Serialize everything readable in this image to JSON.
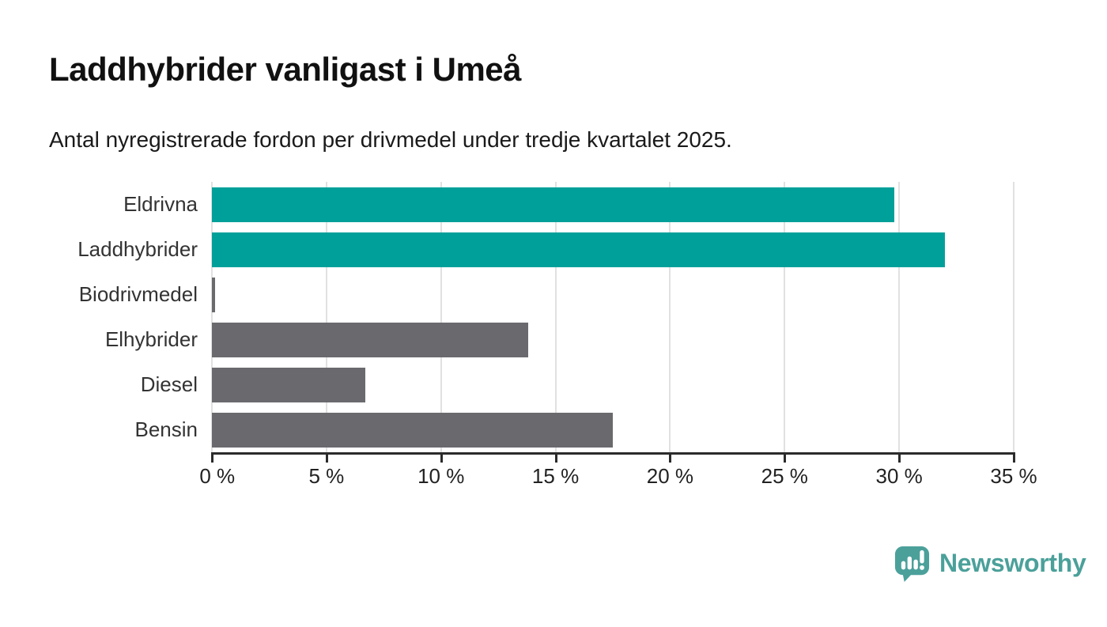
{
  "chart_data": {
    "type": "bar",
    "orientation": "horizontal",
    "title": "Laddhybrider vanligast i Umeå",
    "subtitle": "Antal nyregistrerade fordon per drivmedel under tredje kvartalet 2025.",
    "categories": [
      "Eldrivna",
      "Laddhybrider",
      "Biodrivmedel",
      "Elhybrider",
      "Diesel",
      "Bensin"
    ],
    "values": [
      29.8,
      32.0,
      0.15,
      13.8,
      6.7,
      17.5
    ],
    "bar_colors": [
      "#00A09A",
      "#00A09A",
      "#6A6A6E",
      "#6A6A6E",
      "#6A6A6E",
      "#6A6A6E"
    ],
    "xlabel": "",
    "ylabel": "",
    "xlim": [
      0,
      35
    ],
    "x_ticks": [
      0,
      5,
      10,
      15,
      20,
      25,
      30,
      35
    ],
    "x_tick_labels": [
      "0 %",
      "5 %",
      "10 %",
      "15 %",
      "20 %",
      "25 %",
      "30 %",
      "35 %"
    ],
    "grid": "vertical-gridlines-on",
    "legend": "none"
  },
  "colors": {
    "accent_teal": "#00A09A",
    "bar_gray": "#6A6A6E",
    "gridline": "#E1E1E1",
    "axis": "#2B2B2B",
    "title_text": "#111111",
    "label_text": "#333333",
    "logo_teal": "#4BA09A",
    "background": "#FFFFFF"
  },
  "footer": {
    "brand": "Newsworthy",
    "logo_icon": "newsworthy-speech-bubble-barchart-icon"
  }
}
